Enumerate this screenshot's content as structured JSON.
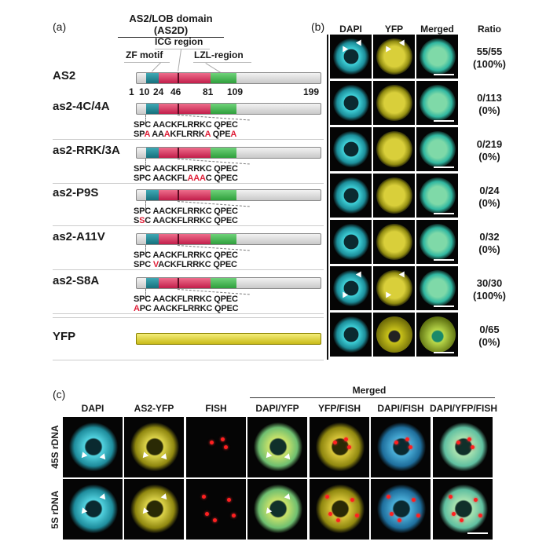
{
  "panel_a": {
    "label": "(a)",
    "title": "AS2/LOB domain (AS2D)",
    "regions": {
      "icg": "ICG region",
      "zf": "ZF motif",
      "lzl": "LZL-region"
    },
    "positions": [
      "1",
      "10",
      "24",
      "46",
      "81",
      "109",
      "199"
    ],
    "wild_type_seq": "SPC AACKFLRRKC QPEC",
    "rows": [
      {
        "name": "AS2"
      },
      {
        "name": "as2-4C/4A",
        "mutant_seq": "SPA AAAKFLRRKA QPEA",
        "mutated_idx": [
          2,
          6,
          13,
          18
        ]
      },
      {
        "name": "as2-RRK/3A",
        "mutant_seq": "SPC AACKFLAAAC QPEC",
        "mutated_idx": [
          10,
          11,
          12
        ]
      },
      {
        "name": "as2-P9S",
        "mutant_seq": "SSC AACKFLRRKC QPEC",
        "mutated_idx": [
          1
        ]
      },
      {
        "name": "as2-A11V",
        "mutant_seq": "SPC VACKFLRRKC QPEC",
        "mutated_idx": [
          4
        ]
      },
      {
        "name": "as2-S8A",
        "mutant_seq": "APC AACKFLRRKC QPEC",
        "mutated_idx": [
          0
        ]
      },
      {
        "name": "YFP"
      }
    ],
    "colors": {
      "zf": "#1f8794",
      "icg": "#d8345f",
      "lzl": "#44b551",
      "yfp": "#e2d640",
      "mutation": "#e0213a"
    }
  },
  "panel_b": {
    "label": "(b)",
    "headers": [
      "DAPI",
      "YFP",
      "Merged",
      "Ratio"
    ],
    "ratios": [
      {
        "count": "55/55",
        "pct": "(100%)"
      },
      {
        "count": "0/113",
        "pct": "(0%)"
      },
      {
        "count": "0/219",
        "pct": "(0%)"
      },
      {
        "count": "0/24",
        "pct": "(0%)"
      },
      {
        "count": "0/32",
        "pct": "(0%)"
      },
      {
        "count": "30/30",
        "pct": "(100%)"
      },
      {
        "count": "0/65",
        "pct": "(0%)"
      }
    ]
  },
  "panel_c": {
    "label": "(c)",
    "group_header": "Merged",
    "headers": [
      "DAPI",
      "AS2-YFP",
      "FISH",
      "DAPI/YFP",
      "YFP/FISH",
      "DAPI/FISH",
      "DAPI/YFP/FISH"
    ],
    "rows": [
      "45S rDNA",
      "5S rDNA"
    ]
  }
}
